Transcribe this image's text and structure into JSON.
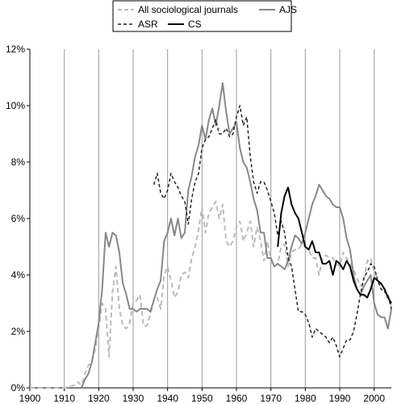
{
  "chart_data": {
    "type": "line",
    "title": "",
    "xlabel": "",
    "ylabel": "",
    "xlim": [
      1900,
      2005
    ],
    "ylim": [
      0,
      12
    ],
    "x_ticks": [
      1900,
      1910,
      1920,
      1930,
      1940,
      1950,
      1960,
      1970,
      1980,
      1990,
      2000
    ],
    "y_ticks": [
      0,
      2,
      4,
      6,
      8,
      10,
      12
    ],
    "y_tick_labels": [
      "0%",
      "2%",
      "4%",
      "6%",
      "8%",
      "10%",
      "12%"
    ],
    "vertical_grid": true,
    "horizontal_grid": false,
    "legend": {
      "position": "top",
      "entries": [
        {
          "label": "All sociological journals",
          "key": "all"
        },
        {
          "label": "AJS",
          "key": "ajs"
        },
        {
          "label": "ASR",
          "key": "asr"
        },
        {
          "label": "CS",
          "key": "cs"
        }
      ]
    },
    "series": [
      {
        "name": "All sociological journals",
        "key": "all",
        "color": "#bbbbbb",
        "style": "dashed",
        "points": [
          [
            1900,
            0
          ],
          [
            1910,
            0
          ],
          [
            1913,
            0.1
          ],
          [
            1914,
            0.2
          ],
          [
            1915,
            0.1
          ],
          [
            1916,
            0.5
          ],
          [
            1917,
            0.8
          ],
          [
            1918,
            0.9
          ],
          [
            1919,
            1.4
          ],
          [
            1920,
            2.1
          ],
          [
            1921,
            3.0
          ],
          [
            1922,
            2.8
          ],
          [
            1923,
            1.1
          ],
          [
            1924,
            3.4
          ],
          [
            1925,
            4.3
          ],
          [
            1926,
            2.8
          ],
          [
            1927,
            2.2
          ],
          [
            1928,
            2.1
          ],
          [
            1929,
            2.3
          ],
          [
            1930,
            3.0
          ],
          [
            1931,
            3.1
          ],
          [
            1932,
            3.3
          ],
          [
            1933,
            2.2
          ],
          [
            1934,
            2.2
          ],
          [
            1935,
            2.6
          ],
          [
            1936,
            3.1
          ],
          [
            1937,
            3.2
          ],
          [
            1938,
            2.8
          ],
          [
            1939,
            4.0
          ],
          [
            1940,
            4.3
          ],
          [
            1941,
            3.8
          ],
          [
            1942,
            3.2
          ],
          [
            1943,
            3.4
          ],
          [
            1944,
            4.0
          ],
          [
            1945,
            4.1
          ],
          [
            1946,
            3.9
          ],
          [
            1947,
            4.6
          ],
          [
            1948,
            5.0
          ],
          [
            1949,
            5.6
          ],
          [
            1950,
            6.4
          ],
          [
            1951,
            5.5
          ],
          [
            1952,
            6.2
          ],
          [
            1953,
            6.4
          ],
          [
            1954,
            6.6
          ],
          [
            1955,
            6.0
          ],
          [
            1956,
            6.5
          ],
          [
            1957,
            5.2
          ],
          [
            1958,
            5.0
          ],
          [
            1959,
            5.2
          ],
          [
            1960,
            5.7
          ],
          [
            1961,
            5.9
          ],
          [
            1962,
            5.2
          ],
          [
            1963,
            5.5
          ],
          [
            1964,
            5.9
          ],
          [
            1965,
            5.0
          ],
          [
            1966,
            5.7
          ],
          [
            1967,
            5.2
          ],
          [
            1968,
            4.5
          ],
          [
            1969,
            5.2
          ],
          [
            1970,
            4.5
          ],
          [
            1971,
            4.3
          ],
          [
            1972,
            4.4
          ],
          [
            1973,
            5.0
          ],
          [
            1974,
            5.1
          ],
          [
            1975,
            4.3
          ],
          [
            1976,
            4.8
          ],
          [
            1977,
            4.9
          ],
          [
            1978,
            4.9
          ],
          [
            1979,
            5.1
          ],
          [
            1980,
            5.0
          ],
          [
            1981,
            4.9
          ],
          [
            1982,
            4.6
          ],
          [
            1983,
            4.6
          ],
          [
            1984,
            4.0
          ],
          [
            1985,
            4.6
          ],
          [
            1986,
            4.7
          ],
          [
            1987,
            4.6
          ],
          [
            1988,
            4.6
          ],
          [
            1989,
            4.4
          ],
          [
            1990,
            4.3
          ],
          [
            1991,
            4.8
          ],
          [
            1992,
            4.6
          ],
          [
            1993,
            4.4
          ],
          [
            1994,
            4.2
          ],
          [
            1995,
            3.9
          ],
          [
            1996,
            3.6
          ],
          [
            1997,
            3.8
          ],
          [
            1998,
            4.5
          ],
          [
            1999,
            4.6
          ],
          [
            2000,
            4.1
          ],
          [
            2001,
            3.9
          ],
          [
            2002,
            3.6
          ],
          [
            2003,
            3.5
          ],
          [
            2004,
            3.3
          ],
          [
            2005,
            2.9
          ]
        ]
      },
      {
        "name": "AJS",
        "key": "ajs",
        "color": "#888888",
        "style": "solid",
        "points": [
          [
            1915,
            0
          ],
          [
            1916,
            0.3
          ],
          [
            1917,
            0.5
          ],
          [
            1918,
            0.9
          ],
          [
            1919,
            1.6
          ],
          [
            1920,
            2.3
          ],
          [
            1921,
            3.5
          ],
          [
            1922,
            5.5
          ],
          [
            1923,
            5.0
          ],
          [
            1924,
            5.5
          ],
          [
            1925,
            5.4
          ],
          [
            1926,
            4.8
          ],
          [
            1927,
            3.7
          ],
          [
            1928,
            3.3
          ],
          [
            1929,
            2.8
          ],
          [
            1930,
            2.8
          ],
          [
            1931,
            2.7
          ],
          [
            1932,
            2.8
          ],
          [
            1933,
            2.8
          ],
          [
            1934,
            2.8
          ],
          [
            1935,
            2.7
          ],
          [
            1936,
            3.1
          ],
          [
            1937,
            3.5
          ],
          [
            1938,
            3.8
          ],
          [
            1939,
            5.2
          ],
          [
            1940,
            5.5
          ],
          [
            1941,
            6.0
          ],
          [
            1942,
            5.4
          ],
          [
            1943,
            6.0
          ],
          [
            1944,
            5.3
          ],
          [
            1945,
            5.5
          ],
          [
            1946,
            7.0
          ],
          [
            1947,
            7.5
          ],
          [
            1948,
            8.2
          ],
          [
            1949,
            8.6
          ],
          [
            1950,
            9.3
          ],
          [
            1951,
            8.8
          ],
          [
            1952,
            9.5
          ],
          [
            1953,
            9.9
          ],
          [
            1954,
            9.3
          ],
          [
            1955,
            10.0
          ],
          [
            1956,
            10.8
          ],
          [
            1957,
            9.8
          ],
          [
            1958,
            9.0
          ],
          [
            1959,
            9.2
          ],
          [
            1960,
            9.4
          ],
          [
            1961,
            8.5
          ],
          [
            1962,
            8.0
          ],
          [
            1963,
            7.8
          ],
          [
            1964,
            7.3
          ],
          [
            1965,
            6.7
          ],
          [
            1966,
            6.3
          ],
          [
            1967,
            5.5
          ],
          [
            1968,
            5.5
          ],
          [
            1969,
            4.6
          ],
          [
            1970,
            4.6
          ],
          [
            1971,
            4.3
          ],
          [
            1972,
            4.4
          ],
          [
            1973,
            4.3
          ],
          [
            1974,
            4.2
          ],
          [
            1975,
            4.5
          ],
          [
            1976,
            5.0
          ],
          [
            1977,
            5.4
          ],
          [
            1978,
            5.3
          ],
          [
            1979,
            5.1
          ],
          [
            1980,
            5.5
          ],
          [
            1981,
            6.0
          ],
          [
            1982,
            6.5
          ],
          [
            1983,
            6.8
          ],
          [
            1984,
            7.2
          ],
          [
            1985,
            7.0
          ],
          [
            1986,
            6.8
          ],
          [
            1987,
            6.7
          ],
          [
            1988,
            6.5
          ],
          [
            1989,
            6.4
          ],
          [
            1990,
            6.4
          ],
          [
            1991,
            6.0
          ],
          [
            1992,
            5.3
          ],
          [
            1993,
            4.9
          ],
          [
            1994,
            4.0
          ],
          [
            1995,
            3.5
          ],
          [
            1996,
            3.3
          ],
          [
            1997,
            3.6
          ],
          [
            1998,
            3.8
          ],
          [
            1999,
            4.0
          ],
          [
            2000,
            3.0
          ],
          [
            2001,
            2.6
          ],
          [
            2002,
            2.5
          ],
          [
            2003,
            2.5
          ],
          [
            2004,
            2.1
          ],
          [
            2005,
            2.8
          ]
        ]
      },
      {
        "name": "ASR",
        "key": "asr",
        "color": "#222222",
        "style": "dashed",
        "points": [
          [
            1936,
            7.2
          ],
          [
            1937,
            7.6
          ],
          [
            1938,
            6.9
          ],
          [
            1939,
            6.7
          ],
          [
            1940,
            7.0
          ],
          [
            1941,
            7.6
          ],
          [
            1942,
            7.3
          ],
          [
            1943,
            7.1
          ],
          [
            1944,
            6.8
          ],
          [
            1945,
            6.6
          ],
          [
            1946,
            5.8
          ],
          [
            1947,
            6.7
          ],
          [
            1948,
            7.3
          ],
          [
            1949,
            7.6
          ],
          [
            1950,
            8.5
          ],
          [
            1951,
            8.8
          ],
          [
            1952,
            8.9
          ],
          [
            1953,
            9.2
          ],
          [
            1954,
            9.5
          ],
          [
            1955,
            9.0
          ],
          [
            1956,
            9.0
          ],
          [
            1957,
            9.2
          ],
          [
            1958,
            8.9
          ],
          [
            1959,
            9.0
          ],
          [
            1960,
            9.6
          ],
          [
            1961,
            10.0
          ],
          [
            1962,
            9.3
          ],
          [
            1963,
            9.6
          ],
          [
            1964,
            8.2
          ],
          [
            1965,
            7.3
          ],
          [
            1966,
            6.9
          ],
          [
            1967,
            7.3
          ],
          [
            1968,
            7.3
          ],
          [
            1969,
            7.0
          ],
          [
            1970,
            6.6
          ],
          [
            1971,
            6.2
          ],
          [
            1972,
            5.4
          ],
          [
            1973,
            5.9
          ],
          [
            1974,
            5.5
          ],
          [
            1975,
            4.6
          ],
          [
            1976,
            4.3
          ],
          [
            1977,
            3.5
          ],
          [
            1978,
            2.7
          ],
          [
            1979,
            2.7
          ],
          [
            1980,
            2.6
          ],
          [
            1981,
            2.3
          ],
          [
            1982,
            1.8
          ],
          [
            1983,
            2.1
          ],
          [
            1984,
            2.0
          ],
          [
            1985,
            1.9
          ],
          [
            1986,
            1.8
          ],
          [
            1987,
            1.6
          ],
          [
            1988,
            1.8
          ],
          [
            1989,
            1.5
          ],
          [
            1990,
            1.1
          ],
          [
            1991,
            1.4
          ],
          [
            1992,
            1.7
          ],
          [
            1993,
            1.7
          ],
          [
            1994,
            2.0
          ],
          [
            1995,
            2.6
          ],
          [
            1996,
            3.3
          ],
          [
            1997,
            3.9
          ],
          [
            1998,
            4.1
          ],
          [
            1999,
            4.4
          ],
          [
            2000,
            4.3
          ],
          [
            2001,
            3.8
          ],
          [
            2002,
            3.5
          ],
          [
            2003,
            3.4
          ],
          [
            2004,
            3.3
          ],
          [
            2005,
            2.8
          ]
        ]
      },
      {
        "name": "CS",
        "key": "cs",
        "color": "#000000",
        "style": "solid",
        "points": [
          [
            1972,
            5.0
          ],
          [
            1973,
            6.2
          ],
          [
            1974,
            6.8
          ],
          [
            1975,
            7.1
          ],
          [
            1976,
            6.5
          ],
          [
            1977,
            6.2
          ],
          [
            1978,
            6.0
          ],
          [
            1979,
            5.5
          ],
          [
            1980,
            5.0
          ],
          [
            1981,
            4.9
          ],
          [
            1982,
            5.2
          ],
          [
            1983,
            4.8
          ],
          [
            1984,
            4.8
          ],
          [
            1985,
            4.4
          ],
          [
            1986,
            4.4
          ],
          [
            1987,
            4.5
          ],
          [
            1988,
            4.0
          ],
          [
            1989,
            4.5
          ],
          [
            1990,
            4.4
          ],
          [
            1991,
            4.2
          ],
          [
            1992,
            4.5
          ],
          [
            1993,
            4.3
          ],
          [
            1994,
            3.8
          ],
          [
            1995,
            3.5
          ],
          [
            1996,
            3.3
          ],
          [
            1997,
            3.3
          ],
          [
            1998,
            3.2
          ],
          [
            1999,
            3.5
          ],
          [
            2000,
            3.9
          ],
          [
            2001,
            3.8
          ],
          [
            2002,
            3.7
          ],
          [
            2003,
            3.5
          ],
          [
            2004,
            3.2
          ],
          [
            2005,
            3.0
          ]
        ]
      }
    ]
  }
}
